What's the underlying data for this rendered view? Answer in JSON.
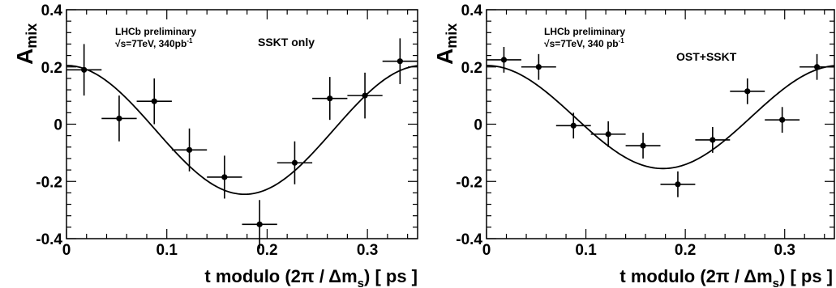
{
  "chart_data": [
    {
      "type": "scatter",
      "xlabel_main": "t modulo (2π / Δm",
      "xlabel_sub": "s",
      "xlabel_end": ") [ ps ]",
      "ylabel_main": "A",
      "ylabel_sub": "mix",
      "xlim": [
        0,
        0.35
      ],
      "ylim": [
        -0.4,
        0.4
      ],
      "x_ticks": [
        "0",
        "0.1",
        "0.2",
        "0.3"
      ],
      "y_ticks": [
        "-0.4",
        "-0.2",
        "0",
        "0.2",
        "0.4"
      ],
      "annotations": {
        "experiment": "LHCb preliminary",
        "energy_line": "√s=7TeV, 340pb",
        "energy_sup": "-1",
        "tagger": "SSKT only"
      },
      "points": [
        {
          "x": 0.0175,
          "y": 0.19,
          "xerr": 0.0175,
          "yerr": 0.09
        },
        {
          "x": 0.0525,
          "y": 0.02,
          "xerr": 0.0175,
          "yerr": 0.08
        },
        {
          "x": 0.0875,
          "y": 0.08,
          "xerr": 0.0175,
          "yerr": 0.08
        },
        {
          "x": 0.1225,
          "y": -0.09,
          "xerr": 0.0175,
          "yerr": 0.075
        },
        {
          "x": 0.1575,
          "y": -0.185,
          "xerr": 0.0175,
          "yerr": 0.075
        },
        {
          "x": 0.1925,
          "y": -0.35,
          "xerr": 0.0175,
          "yerr": 0.085
        },
        {
          "x": 0.2275,
          "y": -0.135,
          "xerr": 0.0175,
          "yerr": 0.075
        },
        {
          "x": 0.2625,
          "y": 0.09,
          "xerr": 0.0175,
          "yerr": 0.075
        },
        {
          "x": 0.2975,
          "y": 0.1,
          "xerr": 0.0175,
          "yerr": 0.08
        },
        {
          "x": 0.3325,
          "y": 0.22,
          "xerr": 0.0175,
          "yerr": 0.08
        }
      ],
      "fit": {
        "offset": -0.02,
        "amplitude": 0.225,
        "x_max": 0.355
      }
    },
    {
      "type": "scatter",
      "xlabel_main": "t modulo (2π / Δm",
      "xlabel_sub": "s",
      "xlabel_end": ") [ ps ]",
      "ylabel_main": "A",
      "ylabel_sub": "mix",
      "xlim": [
        0,
        0.35
      ],
      "ylim": [
        -0.4,
        0.4
      ],
      "x_ticks": [
        "0",
        "0.1",
        "0.2",
        "0.3"
      ],
      "y_ticks": [
        "-0.4",
        "-0.2",
        "0",
        "0.2",
        "0.4"
      ],
      "annotations": {
        "experiment": "LHCb preliminary",
        "energy_line": "√s=7TeV, 340 pb",
        "energy_sup": "-1",
        "tagger": "OST+SSKT"
      },
      "points": [
        {
          "x": 0.0175,
          "y": 0.225,
          "xerr": 0.0175,
          "yerr": 0.045
        },
        {
          "x": 0.0525,
          "y": 0.2,
          "xerr": 0.0175,
          "yerr": 0.045
        },
        {
          "x": 0.0875,
          "y": -0.005,
          "xerr": 0.0175,
          "yerr": 0.045
        },
        {
          "x": 0.1225,
          "y": -0.035,
          "xerr": 0.0175,
          "yerr": 0.045
        },
        {
          "x": 0.1575,
          "y": -0.075,
          "xerr": 0.0175,
          "yerr": 0.045
        },
        {
          "x": 0.1925,
          "y": -0.21,
          "xerr": 0.0175,
          "yerr": 0.045
        },
        {
          "x": 0.2275,
          "y": -0.055,
          "xerr": 0.0175,
          "yerr": 0.045
        },
        {
          "x": 0.2625,
          "y": 0.115,
          "xerr": 0.0175,
          "yerr": 0.045
        },
        {
          "x": 0.2975,
          "y": 0.015,
          "xerr": 0.0175,
          "yerr": 0.045
        },
        {
          "x": 0.3325,
          "y": 0.2,
          "xerr": 0.0175,
          "yerr": 0.045
        }
      ],
      "fit": {
        "offset": 0.025,
        "amplitude": 0.18,
        "x_max": 0.355
      }
    }
  ]
}
